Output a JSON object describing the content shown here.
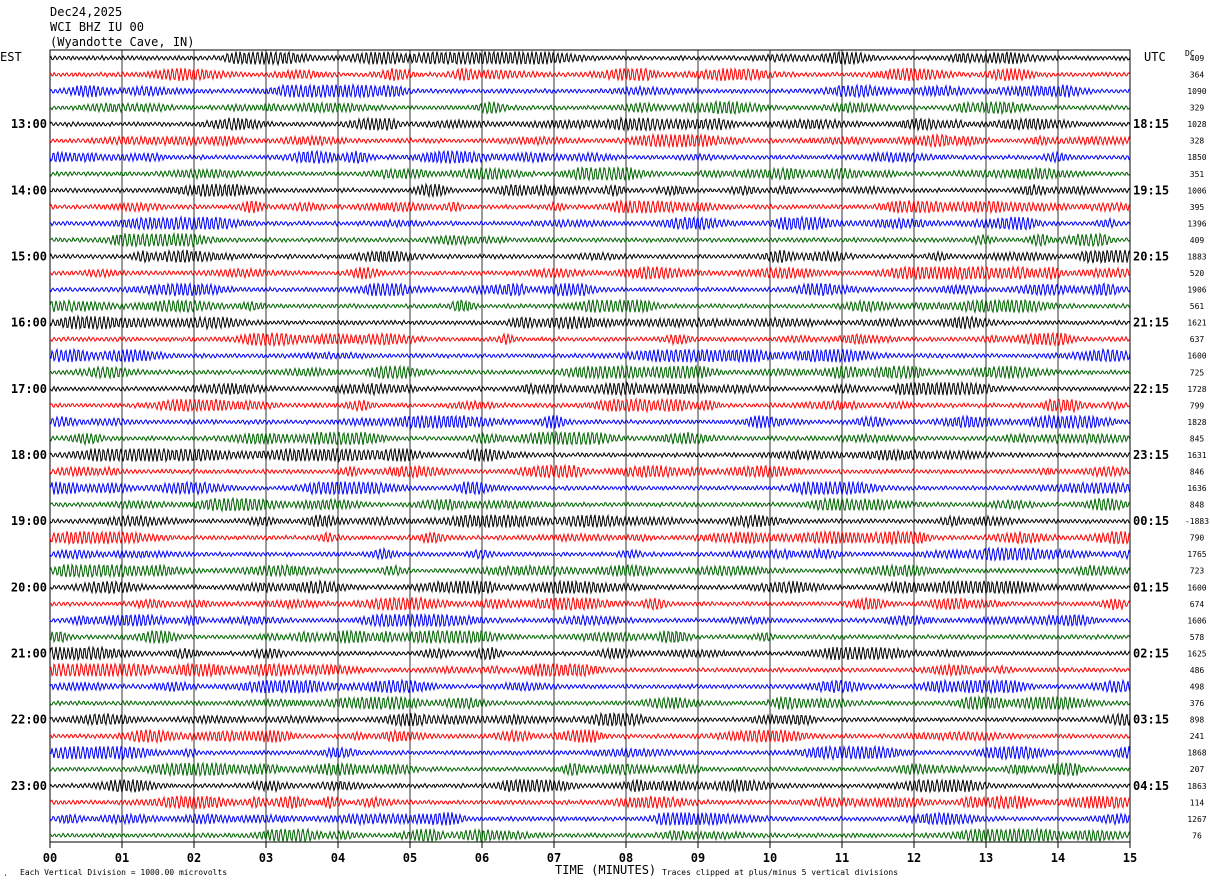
{
  "header": {
    "date": "Dec24,2025",
    "station": "WCI BHZ IU 00",
    "location": "(Wyandotte Cave, IN)"
  },
  "left_zone": "EST",
  "right_zone": "UTC",
  "dc_label": "DC",
  "footer": {
    "x_title": "TIME (MINUTES)",
    "scale_note": "Each Vertical Division = 1000.00 microvolts",
    "clip_note": "Traces clipped at plus/minus 5 vertical divisions"
  },
  "colors": {
    "trace_cycle": [
      "#000000",
      "#ff0000",
      "#0000ff",
      "#006400"
    ],
    "grid": "#000000"
  },
  "chart_data": {
    "type": "line",
    "title": "WCI BHZ IU 00 (Wyandotte Cave, IN) Dec24,2025",
    "xlabel": "TIME (MINUTES)",
    "x_ticks": [
      "00",
      "01",
      "02",
      "03",
      "04",
      "05",
      "06",
      "07",
      "08",
      "09",
      "10",
      "11",
      "12",
      "13",
      "14",
      "15"
    ],
    "xlim": [
      0,
      15
    ],
    "rows_per_hour": 4,
    "left_hour_labels": [
      "13:00",
      "14:00",
      "15:00",
      "16:00",
      "17:00",
      "18:00",
      "19:00",
      "20:00",
      "21:00",
      "22:00",
      "23:00"
    ],
    "right_hour_labels": [
      "18:15",
      "19:15",
      "20:15",
      "21:15",
      "22:15",
      "23:15",
      "00:15",
      "01:15",
      "02:15",
      "03:15",
      "04:15"
    ],
    "dc_offsets": [
      "409",
      "364",
      "1090",
      "329",
      "1028",
      "328",
      "1850",
      "351",
      "1006",
      "395",
      "1396",
      "409",
      "1883",
      "520",
      "1906",
      "561",
      "1621",
      "637",
      "1600",
      "725",
      "1728",
      "799",
      "1828",
      "845",
      "1631",
      "846",
      "1636",
      "848",
      "-1883",
      "790",
      "1765",
      "723",
      "1600",
      "674",
      "1606",
      "578",
      "1625",
      "486",
      "498",
      "376",
      "898",
      "241",
      "1868",
      "207",
      "1863",
      "114",
      "1267",
      "76"
    ],
    "grid": true
  }
}
